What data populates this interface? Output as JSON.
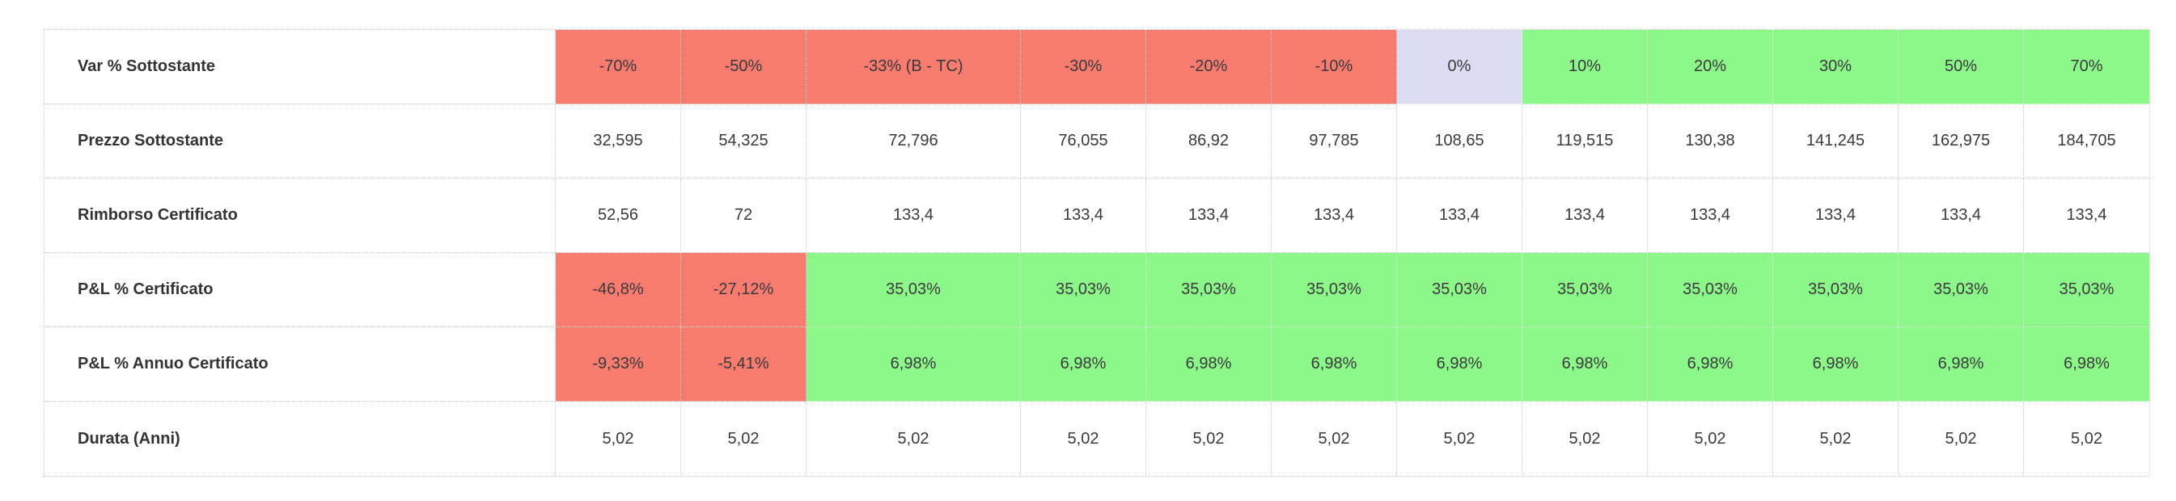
{
  "table": {
    "name": "certificate-scenario-table",
    "colors": {
      "red": "#FA7B70",
      "green": "#8DF88A",
      "lavender": "#DBDCF2",
      "white": "#FFFFFF",
      "border": "#C9C9C9",
      "label_text": "#333333",
      "cell_text": "#3A3A3A"
    },
    "rows": [
      {
        "label": "Var % Sottostante",
        "cells": [
          {
            "text": "-70%",
            "bg": "red"
          },
          {
            "text": "-50%",
            "bg": "red"
          },
          {
            "text": "-33% (B - TC)",
            "bg": "red"
          },
          {
            "text": "-30%",
            "bg": "red"
          },
          {
            "text": "-20%",
            "bg": "red"
          },
          {
            "text": "-10%",
            "bg": "red"
          },
          {
            "text": "0%",
            "bg": "lavender"
          },
          {
            "text": "10%",
            "bg": "green"
          },
          {
            "text": "20%",
            "bg": "green"
          },
          {
            "text": "30%",
            "bg": "green"
          },
          {
            "text": "50%",
            "bg": "green"
          },
          {
            "text": "70%",
            "bg": "green"
          }
        ]
      },
      {
        "label": "Prezzo Sottostante",
        "cells": [
          {
            "text": "32,595",
            "bg": "white"
          },
          {
            "text": "54,325",
            "bg": "white"
          },
          {
            "text": "72,796",
            "bg": "white"
          },
          {
            "text": "76,055",
            "bg": "white"
          },
          {
            "text": "86,92",
            "bg": "white"
          },
          {
            "text": "97,785",
            "bg": "white"
          },
          {
            "text": "108,65",
            "bg": "white"
          },
          {
            "text": "119,515",
            "bg": "white"
          },
          {
            "text": "130,38",
            "bg": "white"
          },
          {
            "text": "141,245",
            "bg": "white"
          },
          {
            "text": "162,975",
            "bg": "white"
          },
          {
            "text": "184,705",
            "bg": "white"
          }
        ]
      },
      {
        "label": "Rimborso Certificato",
        "cells": [
          {
            "text": "52,56",
            "bg": "white"
          },
          {
            "text": "72",
            "bg": "white"
          },
          {
            "text": "133,4",
            "bg": "white"
          },
          {
            "text": "133,4",
            "bg": "white"
          },
          {
            "text": "133,4",
            "bg": "white"
          },
          {
            "text": "133,4",
            "bg": "white"
          },
          {
            "text": "133,4",
            "bg": "white"
          },
          {
            "text": "133,4",
            "bg": "white"
          },
          {
            "text": "133,4",
            "bg": "white"
          },
          {
            "text": "133,4",
            "bg": "white"
          },
          {
            "text": "133,4",
            "bg": "white"
          },
          {
            "text": "133,4",
            "bg": "white"
          }
        ]
      },
      {
        "label": "P&L % Certificato",
        "cells": [
          {
            "text": "-46,8%",
            "bg": "red"
          },
          {
            "text": "-27,12%",
            "bg": "red"
          },
          {
            "text": "35,03%",
            "bg": "green"
          },
          {
            "text": "35,03%",
            "bg": "green"
          },
          {
            "text": "35,03%",
            "bg": "green"
          },
          {
            "text": "35,03%",
            "bg": "green"
          },
          {
            "text": "35,03%",
            "bg": "green"
          },
          {
            "text": "35,03%",
            "bg": "green"
          },
          {
            "text": "35,03%",
            "bg": "green"
          },
          {
            "text": "35,03%",
            "bg": "green"
          },
          {
            "text": "35,03%",
            "bg": "green"
          },
          {
            "text": "35,03%",
            "bg": "green"
          }
        ]
      },
      {
        "label": "P&L % Annuo Certificato",
        "cells": [
          {
            "text": "-9,33%",
            "bg": "red"
          },
          {
            "text": "-5,41%",
            "bg": "red"
          },
          {
            "text": "6,98%",
            "bg": "green"
          },
          {
            "text": "6,98%",
            "bg": "green"
          },
          {
            "text": "6,98%",
            "bg": "green"
          },
          {
            "text": "6,98%",
            "bg": "green"
          },
          {
            "text": "6,98%",
            "bg": "green"
          },
          {
            "text": "6,98%",
            "bg": "green"
          },
          {
            "text": "6,98%",
            "bg": "green"
          },
          {
            "text": "6,98%",
            "bg": "green"
          },
          {
            "text": "6,98%",
            "bg": "green"
          },
          {
            "text": "6,98%",
            "bg": "green"
          }
        ]
      },
      {
        "label": "Durata (Anni)",
        "cells": [
          {
            "text": "5,02",
            "bg": "white"
          },
          {
            "text": "5,02",
            "bg": "white"
          },
          {
            "text": "5,02",
            "bg": "white"
          },
          {
            "text": "5,02",
            "bg": "white"
          },
          {
            "text": "5,02",
            "bg": "white"
          },
          {
            "text": "5,02",
            "bg": "white"
          },
          {
            "text": "5,02",
            "bg": "white"
          },
          {
            "text": "5,02",
            "bg": "white"
          },
          {
            "text": "5,02",
            "bg": "white"
          },
          {
            "text": "5,02",
            "bg": "white"
          },
          {
            "text": "5,02",
            "bg": "white"
          },
          {
            "text": "5,02",
            "bg": "white"
          }
        ]
      }
    ]
  }
}
